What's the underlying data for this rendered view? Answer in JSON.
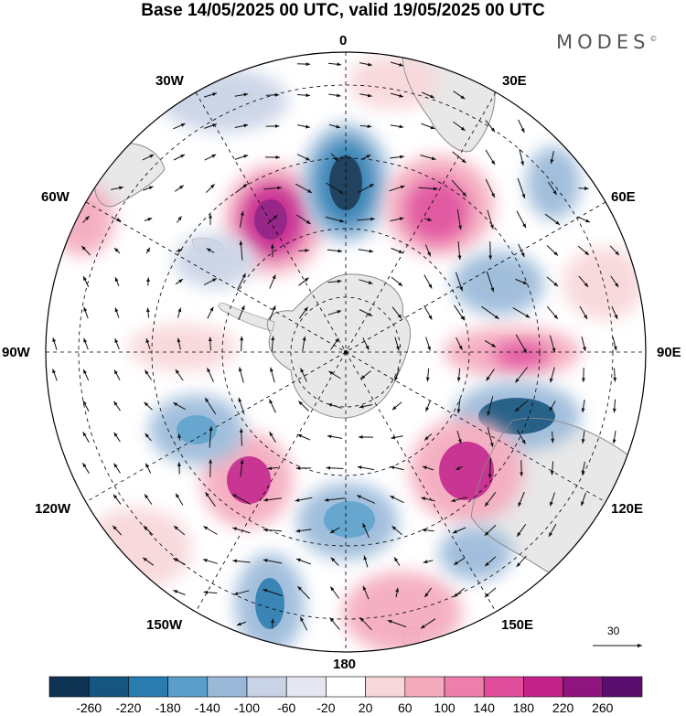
{
  "header": {
    "title": "Base 14/05/2025 00 UTC, valid 19/05/2025 00 UTC",
    "brand": "MODES",
    "brand_mark": "©"
  },
  "longitude_labels": {
    "top": "0",
    "top_left": "30W",
    "top_right": "30E",
    "upper_left": "60W",
    "upper_right": "60E",
    "left": "90W",
    "right": "90E",
    "lower_left": "120W",
    "lower_right": "120E",
    "bottom_left": "150W",
    "bottom_right": "150E",
    "bottom": "180"
  },
  "wind_scale": {
    "value": "30"
  },
  "colorbar": {
    "labels": [
      "-260",
      "-220",
      "-180",
      "-140",
      "-100",
      "-60",
      "-20",
      "20",
      "60",
      "100",
      "140",
      "180",
      "220",
      "260"
    ],
    "colors": [
      "#0f3453",
      "#16557f",
      "#2a7bb0",
      "#5a9fcb",
      "#9ab9d9",
      "#c9d3e6",
      "#e6e6f1",
      "#ffffff",
      "#f8d7da",
      "#f4aabd",
      "#ee7fab",
      "#e04e9b",
      "#c4248a",
      "#8e147e",
      "#5a0f6e"
    ]
  },
  "palette": {
    "land": "#e8e8e8",
    "coast": "#9a9a9a",
    "grid": "#000000",
    "arrow": "#111111"
  }
}
